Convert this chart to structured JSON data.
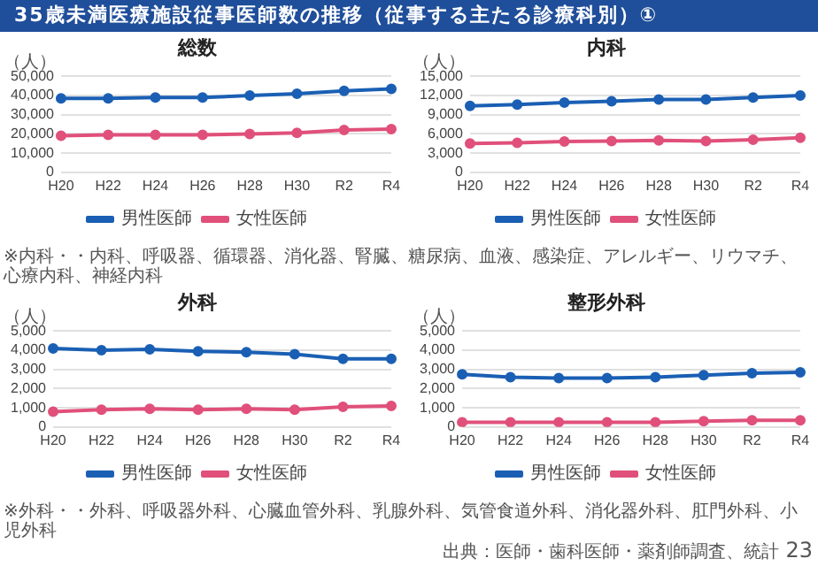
{
  "chart_data": [
    {
      "type": "line",
      "title": "総数",
      "ylabel": "（人）",
      "annotations": [
        "35歳未満医療施設従事医師数の推移（従事する主たる診療科別）①"
      ],
      "categories": [
        "H20",
        "H22",
        "H24",
        "H26",
        "H28",
        "H30",
        "R2",
        "R4"
      ],
      "series": [
        {
          "name": "男性医師",
          "color": "#1a5fb4",
          "values": [
            38500,
            38500,
            39000,
            39000,
            40000,
            41000,
            42500,
            43500
          ]
        },
        {
          "name": "女性医師",
          "color": "#e0507a",
          "values": [
            19000,
            19500,
            19500,
            19500,
            20000,
            20500,
            22000,
            22500
          ]
        }
      ],
      "ylim": [
        0,
        50000
      ],
      "yticks": [
        {
          "value": 0,
          "label": "0"
        },
        {
          "value": 10000,
          "label": "10,000"
        },
        {
          "value": 20000,
          "label": "20,000"
        },
        {
          "value": 30000,
          "label": "30,000"
        },
        {
          "value": 40000,
          "label": "40,000"
        },
        {
          "value": 50000,
          "label": "50,000"
        }
      ],
      "grid": "y",
      "legend": "bottom",
      "marker": "circle",
      "line_style": "solid"
    },
    {
      "type": "line",
      "title": "内科",
      "ylabel": "（人）",
      "annotations": [
        "※内科・・内科、呼吸器、循環器、消化器、腎臓、糖尿病、血液、感染症、アレルギー、リウマチ、心療内科、神経内科"
      ],
      "categories": [
        "H20",
        "H22",
        "H24",
        "H26",
        "H28",
        "H30",
        "R2",
        "R4"
      ],
      "series": [
        {
          "name": "男性医師",
          "color": "#1a5fb4",
          "values": [
            10400,
            10600,
            10900,
            11100,
            11400,
            11400,
            11700,
            12000
          ]
        },
        {
          "name": "女性医師",
          "color": "#e0507a",
          "values": [
            4500,
            4600,
            4800,
            4900,
            5000,
            4900,
            5100,
            5400
          ]
        }
      ],
      "ylim": [
        0,
        15000
      ],
      "yticks": [
        {
          "value": 0,
          "label": "0"
        },
        {
          "value": 3000,
          "label": "3,000"
        },
        {
          "value": 6000,
          "label": "6,000"
        },
        {
          "value": 9000,
          "label": "9,000"
        },
        {
          "value": 12000,
          "label": "12,000"
        },
        {
          "value": 15000,
          "label": "15,000"
        }
      ],
      "grid": "y",
      "legend": "bottom",
      "marker": "circle",
      "line_style": "solid"
    },
    {
      "type": "line",
      "title": "外科",
      "ylabel": "（人）",
      "annotations": [
        "※外科・・外科、呼吸器外科、心臓血管外科、乳腺外科、気管食道外科、消化器外科、肛門外科、小児外科"
      ],
      "categories": [
        "H20",
        "H22",
        "H24",
        "H26",
        "H28",
        "H30",
        "R2",
        "R4"
      ],
      "series": [
        {
          "name": "男性医師",
          "color": "#1a5fb4",
          "values": [
            4100,
            4000,
            4050,
            3950,
            3900,
            3800,
            3550,
            3550
          ]
        },
        {
          "name": "女性医師",
          "color": "#e0507a",
          "values": [
            800,
            900,
            950,
            900,
            950,
            900,
            1050,
            1100
          ]
        }
      ],
      "ylim": [
        0,
        5000
      ],
      "yticks": [
        0,
        {
          "value": 1000,
          "label": "1,000"
        },
        {
          "value": 2000,
          "label": "2,000"
        },
        {
          "value": 3000,
          "label": "3,000"
        },
        {
          "value": 4000,
          "label": "4,000"
        },
        {
          "value": 5000,
          "label": "5,000"
        }
      ],
      "grid": "y",
      "legend": "bottom",
      "marker": "circle",
      "line_style": "solid"
    },
    {
      "type": "line",
      "title": "整形外科",
      "ylabel": "（人）",
      "annotations": [
        "出典：医師・歯科医師・薬剤師調査、統計",
        "23"
      ],
      "categories": [
        "H20",
        "H22",
        "H24",
        "H26",
        "H28",
        "H30",
        "R2",
        "R4"
      ],
      "series": [
        {
          "name": "男性医師",
          "color": "#1a5fb4",
          "values": [
            2750,
            2600,
            2550,
            2550,
            2600,
            2700,
            2800,
            2850
          ]
        },
        {
          "name": "女性医師",
          "color": "#e0507a",
          "values": [
            250,
            250,
            250,
            250,
            250,
            300,
            350,
            350
          ]
        }
      ],
      "ylim": [
        0,
        5000
      ],
      "yticks": [
        0,
        {
          "value": 1000,
          "label": "1,000"
        },
        {
          "value": 2000,
          "label": "2,000"
        },
        {
          "value": 3000,
          "label": "3,000"
        },
        {
          "value": 4000,
          "label": "4,000"
        },
        {
          "value": 5000,
          "label": "5,000"
        }
      ],
      "grid": "y",
      "legend": "bottom",
      "marker": "circle",
      "line_style": "solid"
    }
  ]
}
